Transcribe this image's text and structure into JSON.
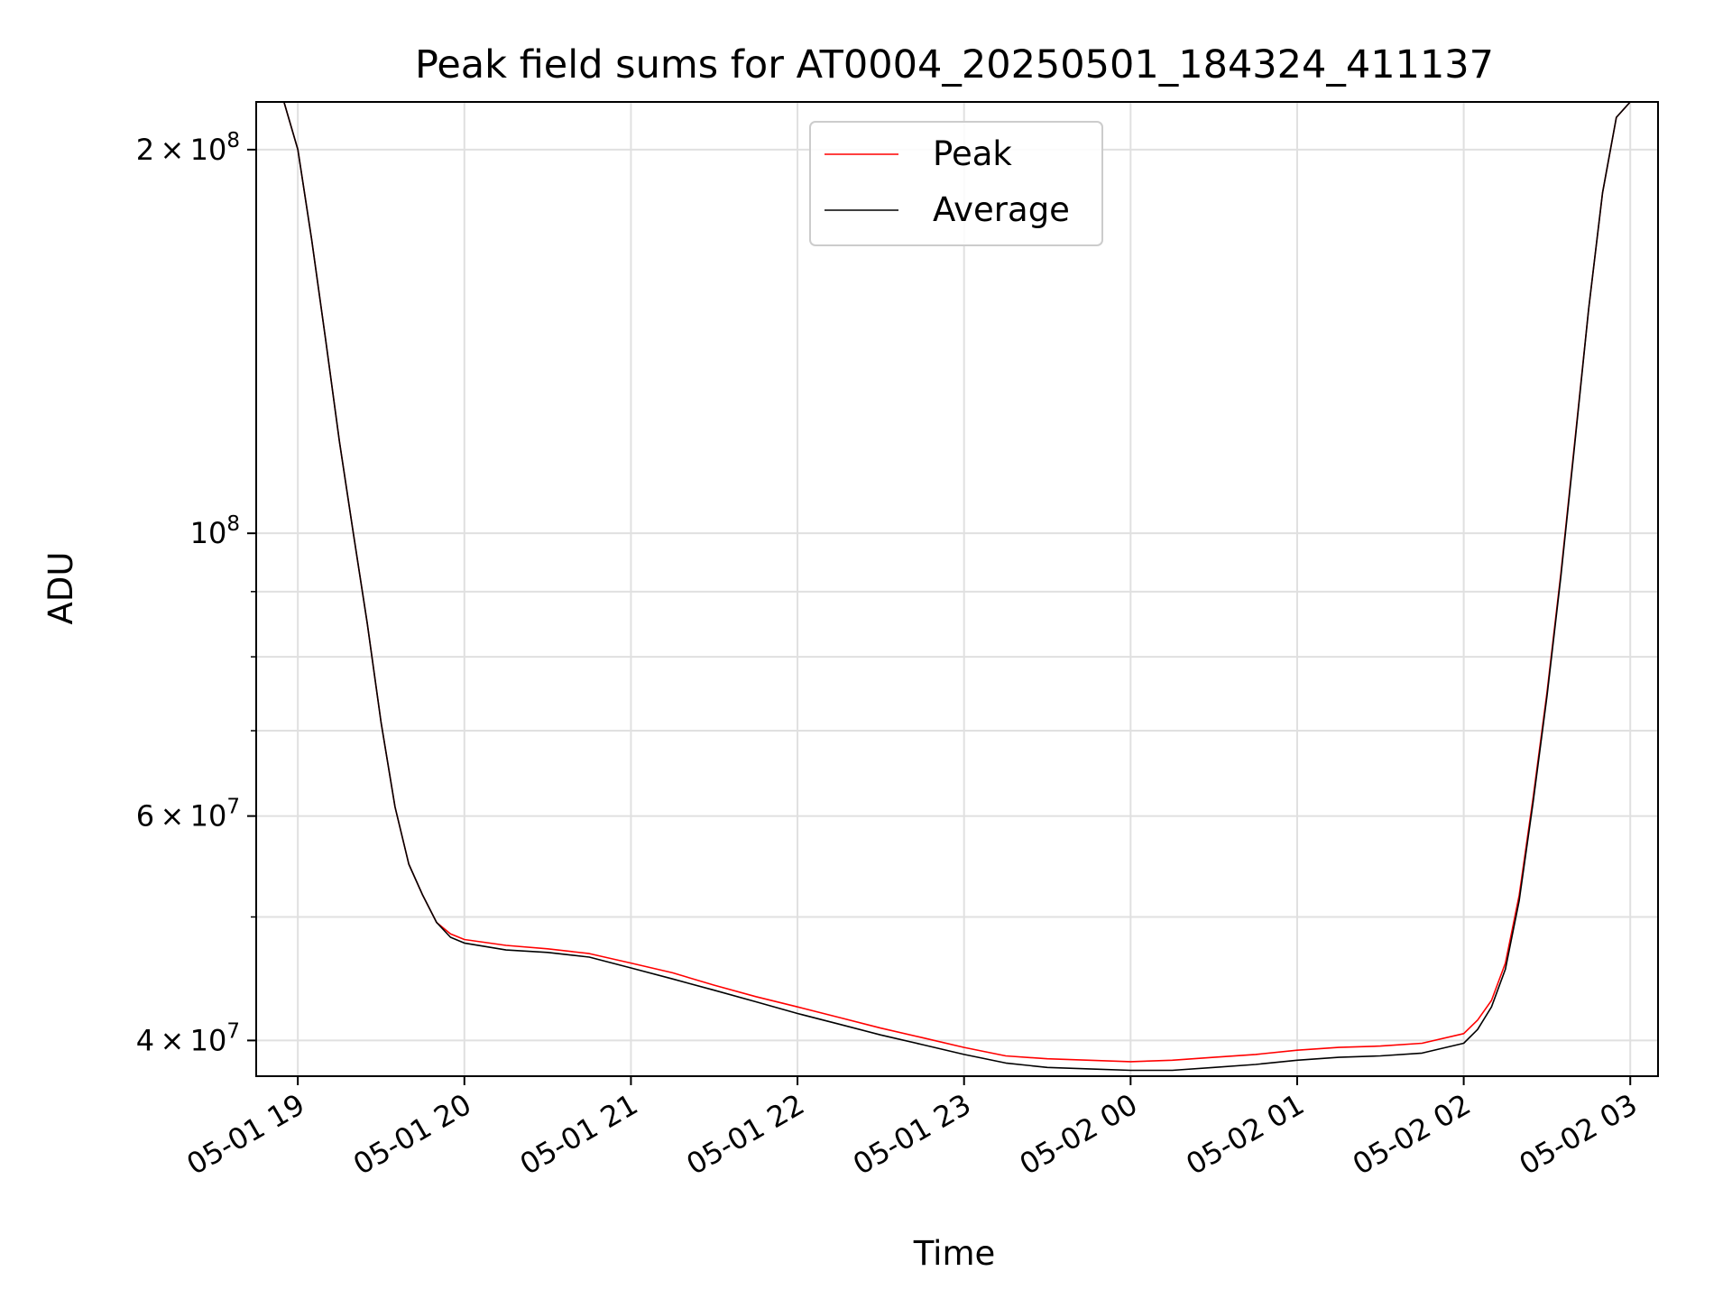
{
  "chart_data": {
    "type": "line",
    "title": "Peak field sums for AT0004_20250501_184324_411137",
    "xlabel": "Time",
    "ylabel": "ADU",
    "yscale": "log",
    "grid": true,
    "legend_placement": "upper-center",
    "xlim": [
      "2025-05-01 18:45",
      "2025-05-02 03:10"
    ],
    "ylim": [
      37500000,
      218000000
    ],
    "x_ticks": [
      {
        "value": "2025-05-01 19:00",
        "label": "05-01 19"
      },
      {
        "value": "2025-05-01 20:00",
        "label": "05-01 20"
      },
      {
        "value": "2025-05-01 21:00",
        "label": "05-01 21"
      },
      {
        "value": "2025-05-01 22:00",
        "label": "05-01 22"
      },
      {
        "value": "2025-05-01 23:00",
        "label": "05-01 23"
      },
      {
        "value": "2025-05-02 00:00",
        "label": "05-02 00"
      },
      {
        "value": "2025-05-02 01:00",
        "label": "05-02 01"
      },
      {
        "value": "2025-05-02 02:00",
        "label": "05-02 02"
      },
      {
        "value": "2025-05-02 03:00",
        "label": "05-02 03"
      }
    ],
    "y_major_ticks": [
      {
        "value": 40000000,
        "mantissa": "4",
        "exponent": "7"
      },
      {
        "value": 60000000,
        "mantissa": "6",
        "exponent": "7"
      },
      {
        "value": 100000000,
        "mantissa": "",
        "exponent": "8"
      },
      {
        "value": 200000000,
        "mantissa": "2",
        "exponent": "8"
      }
    ],
    "y_minor_ticks": [
      50000000,
      70000000,
      80000000,
      90000000
    ],
    "series": [
      {
        "name": "Peak",
        "color": "#ff0000",
        "x": [
          "2025-05-01 18:48",
          "2025-05-01 18:55",
          "2025-05-01 19:00",
          "2025-05-01 19:05",
          "2025-05-01 19:10",
          "2025-05-01 19:15",
          "2025-05-01 19:20",
          "2025-05-01 19:25",
          "2025-05-01 19:30",
          "2025-05-01 19:35",
          "2025-05-01 19:40",
          "2025-05-01 19:45",
          "2025-05-01 19:50",
          "2025-05-01 19:55",
          "2025-05-01 20:00",
          "2025-05-01 20:15",
          "2025-05-01 20:30",
          "2025-05-01 20:45",
          "2025-05-01 21:00",
          "2025-05-01 21:15",
          "2025-05-01 21:30",
          "2025-05-01 21:45",
          "2025-05-01 22:00",
          "2025-05-01 22:15",
          "2025-05-01 22:30",
          "2025-05-01 22:45",
          "2025-05-01 23:00",
          "2025-05-01 23:15",
          "2025-05-01 23:30",
          "2025-05-01 23:45",
          "2025-05-02 00:00",
          "2025-05-02 00:15",
          "2025-05-02 00:30",
          "2025-05-02 00:45",
          "2025-05-02 01:00",
          "2025-05-02 01:15",
          "2025-05-02 01:30",
          "2025-05-02 01:45",
          "2025-05-02 02:00",
          "2025-05-02 02:05",
          "2025-05-02 02:10",
          "2025-05-02 02:15",
          "2025-05-02 02:20",
          "2025-05-02 02:25",
          "2025-05-02 02:30",
          "2025-05-02 02:35",
          "2025-05-02 02:40",
          "2025-05-02 02:45",
          "2025-05-02 02:50",
          "2025-05-02 02:55",
          "2025-05-02 03:00",
          "2025-05-02 03:05"
        ],
        "y": [
          218000000,
          218000000,
          200000000,
          170000000,
          142000000,
          118000000,
          100000000,
          85000000,
          71000000,
          61000000,
          55000000,
          52000000,
          49500000,
          48500000,
          48000000,
          47500000,
          47200000,
          46800000,
          46000000,
          45200000,
          44200000,
          43300000,
          42500000,
          41700000,
          40900000,
          40200000,
          39500000,
          38900000,
          38700000,
          38600000,
          38500000,
          38600000,
          38800000,
          39000000,
          39300000,
          39500000,
          39600000,
          39800000,
          40500000,
          41500000,
          43000000,
          46000000,
          52000000,
          62000000,
          75000000,
          93000000,
          118000000,
          150000000,
          185000000,
          212000000,
          218000000,
          218000000
        ]
      },
      {
        "name": "Average",
        "color": "#000000",
        "x": [
          "2025-05-01 18:48",
          "2025-05-01 18:55",
          "2025-05-01 19:00",
          "2025-05-01 19:05",
          "2025-05-01 19:10",
          "2025-05-01 19:15",
          "2025-05-01 19:20",
          "2025-05-01 19:25",
          "2025-05-01 19:30",
          "2025-05-01 19:35",
          "2025-05-01 19:40",
          "2025-05-01 19:45",
          "2025-05-01 19:50",
          "2025-05-01 19:55",
          "2025-05-01 20:00",
          "2025-05-01 20:15",
          "2025-05-01 20:30",
          "2025-05-01 20:45",
          "2025-05-01 21:00",
          "2025-05-01 21:15",
          "2025-05-01 21:30",
          "2025-05-01 21:45",
          "2025-05-01 22:00",
          "2025-05-01 22:15",
          "2025-05-01 22:30",
          "2025-05-01 22:45",
          "2025-05-01 23:00",
          "2025-05-01 23:15",
          "2025-05-01 23:30",
          "2025-05-01 23:45",
          "2025-05-02 00:00",
          "2025-05-02 00:15",
          "2025-05-02 00:30",
          "2025-05-02 00:45",
          "2025-05-02 01:00",
          "2025-05-02 01:15",
          "2025-05-02 01:30",
          "2025-05-02 01:45",
          "2025-05-02 02:00",
          "2025-05-02 02:05",
          "2025-05-02 02:10",
          "2025-05-02 02:15",
          "2025-05-02 02:20",
          "2025-05-02 02:25",
          "2025-05-02 02:30",
          "2025-05-02 02:35",
          "2025-05-02 02:40",
          "2025-05-02 02:45",
          "2025-05-02 02:50",
          "2025-05-02 02:55",
          "2025-05-02 03:00",
          "2025-05-02 03:05"
        ],
        "y": [
          218000000,
          218000000,
          200000000,
          170000000,
          142000000,
          118000000,
          100000000,
          85000000,
          71000000,
          61000000,
          55000000,
          52000000,
          49500000,
          48200000,
          47700000,
          47100000,
          46900000,
          46500000,
          45600000,
          44700000,
          43800000,
          42900000,
          42000000,
          41200000,
          40400000,
          39700000,
          39000000,
          38400000,
          38100000,
          38000000,
          37900000,
          37900000,
          38100000,
          38300000,
          38600000,
          38800000,
          38900000,
          39100000,
          39800000,
          40800000,
          42500000,
          45500000,
          51500000,
          61500000,
          74500000,
          92500000,
          117500000,
          150000000,
          185000000,
          212000000,
          218000000,
          218000000
        ]
      }
    ]
  }
}
